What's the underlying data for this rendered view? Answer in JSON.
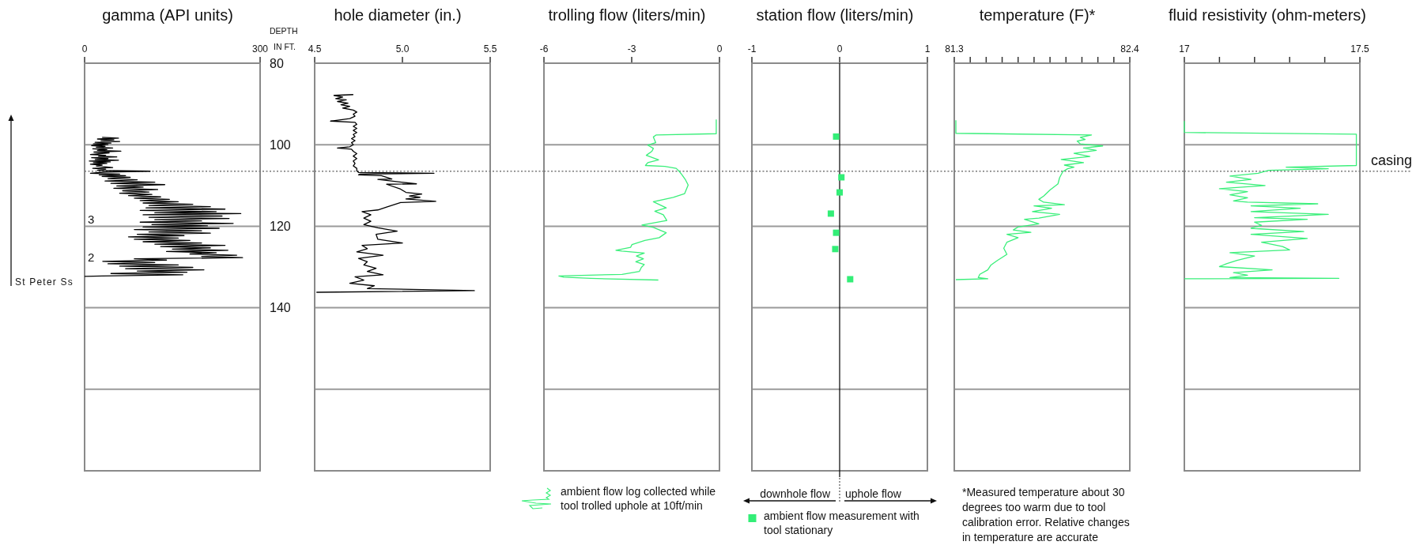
{
  "chart_data": [
    {
      "type": "line",
      "title": "gamma (API units)",
      "ylabel": "DEPTH IN FT.",
      "xlim": [
        0,
        300
      ],
      "xticks": [
        0,
        300
      ],
      "ylim": [
        180,
        80
      ],
      "yticks": [
        80,
        100,
        120,
        140,
        {
          "value": 160,
          "label": null
        }
      ],
      "grid": "y",
      "ref_lines": [
        {
          "axis": "y",
          "value": 106.5,
          "line_style": "dotted",
          "color": "#777777"
        }
      ],
      "annotations": [
        "3",
        "2",
        "St Peter Ss"
      ],
      "series": [
        {
          "color": "#000000",
          "x": [
            30,
            58,
            22,
            50,
            28,
            60,
            18,
            45,
            15,
            40,
            12,
            35,
            20,
            48,
            14,
            38,
            22,
            62,
            16,
            42,
            10,
            36,
            24,
            55,
            12,
            40,
            18,
            58,
            8,
            44,
            15,
            38,
            10,
            30,
            20,
            48,
            14,
            36,
            22,
            112,
            35,
            10,
            60,
            25,
            70,
            30,
            78,
            40,
            90,
            35,
            120,
            45,
            137,
            55,
            100,
            50,
            125,
            65,
            110,
            60,
            115,
            75,
            130,
            85,
            145,
            95,
            160,
            100,
            185,
            110,
            215,
            105,
            240,
            95,
            225,
            120,
            267,
            100,
            235,
            110,
            247,
            120,
            200,
            95,
            254,
            115,
            210,
            100,
            230,
            85,
            200,
            110,
            215,
            90,
            170,
            75,
            160,
            85,
            180,
            100,
            200,
            120,
            240,
            130,
            215,
            150,
            245,
            140,
            225,
            180,
            260,
            200,
            270,
            85,
            140,
            31,
            120,
            40,
            160,
            60,
            185,
            70,
            204,
            90,
            175,
            45,
            168,
            30,
            0
          ],
          "values": [
            98.2,
            98.4,
            98.6,
            98.8,
            99.0,
            99.2,
            99.4,
            99.6,
            99.8,
            100.0,
            100.2,
            100.4,
            100.6,
            100.8,
            101.0,
            101.2,
            101.4,
            101.6,
            101.8,
            102.0,
            102.4,
            102.6,
            102.8,
            103.0,
            103.2,
            103.4,
            103.6,
            103.8,
            104.0,
            104.2,
            104.4,
            104.6,
            104.8,
            105.0,
            105.2,
            105.6,
            105.8,
            106.0,
            106.3,
            106.5,
            106.7,
            107.0,
            107.2,
            107.4,
            107.6,
            107.8,
            108.0,
            108.3,
            108.6,
            108.9,
            109.2,
            109.5,
            109.8,
            110.1,
            110.4,
            110.7,
            111.0,
            111.3,
            111.6,
            111.9,
            112.2,
            112.5,
            112.8,
            113.1,
            113.4,
            113.7,
            114.0,
            114.3,
            114.6,
            114.9,
            115.2,
            115.5,
            115.8,
            116.1,
            116.4,
            116.7,
            116.9,
            117.2,
            117.5,
            117.8,
            118.1,
            118.4,
            118.7,
            119.0,
            119.3,
            119.6,
            119.9,
            120.2,
            120.5,
            120.8,
            121.1,
            121.4,
            121.7,
            122.0,
            122.3,
            122.6,
            122.9,
            123.2,
            123.5,
            123.8,
            124.1,
            124.4,
            124.7,
            125.0,
            125.3,
            125.6,
            125.9,
            126.2,
            126.5,
            126.8,
            127.1,
            127.4,
            127.7,
            128.0,
            128.3,
            128.6,
            128.9,
            129.2,
            129.5,
            129.8,
            130.1,
            130.4,
            130.7,
            131.0,
            131.3,
            131.6,
            131.9,
            132.2,
            132.3
          ]
        }
      ]
    },
    {
      "type": "line",
      "title": "hole diameter (in.)",
      "xlim": [
        4.5,
        5.5
      ],
      "xticks": [
        4.5,
        {
          "value": 5,
          "label": "5.0"
        },
        5.5
      ],
      "ylim": [
        180,
        80
      ],
      "yticks": [
        80,
        100,
        120,
        140,
        160
      ],
      "grid": "y",
      "tick_labels": "x",
      "ref_lines": [
        {
          "axis": "y",
          "value": 106.5,
          "line_style": "dotted",
          "color": "#777777"
        }
      ],
      "series": [
        {
          "color": "#000000",
          "x": [
            4.72,
            4.61,
            4.66,
            4.62,
            4.68,
            4.63,
            4.69,
            4.65,
            4.7,
            4.66,
            4.72,
            4.74,
            4.72,
            4.73,
            4.7,
            4.59,
            4.73,
            4.74,
            4.72,
            4.74,
            4.72,
            4.74,
            4.72,
            4.73,
            4.71,
            4.73,
            4.71,
            4.72,
            4.7,
            4.63,
            4.71,
            4.72,
            4.74,
            4.72,
            4.74,
            4.72,
            4.73,
            4.72,
            4.74,
            4.74,
            4.75,
            5.18,
            4.76,
            4.75,
            4.88,
            4.94,
            4.86,
            5.08,
            4.91,
            4.99,
            5.02,
            5.11,
            5.04,
            5.1,
            5.02,
            5.19,
            4.99,
            4.91,
            4.86,
            4.77,
            4.82,
            4.78,
            4.82,
            4.78,
            4.86,
            4.97,
            4.85,
            4.86,
            5.0,
            4.77,
            4.8,
            4.74,
            4.89,
            4.75,
            4.8,
            4.78,
            4.85,
            4.8,
            4.89,
            4.73,
            4.78,
            4.7,
            4.84,
            4.8,
            5.41,
            4.51
          ],
          "values": [
            87.7,
            87.9,
            88.3,
            88.7,
            89.0,
            89.4,
            89.8,
            90.2,
            90.6,
            91.0,
            91.5,
            92.0,
            92.5,
            93.0,
            93.6,
            94.2,
            94.5,
            95.0,
            95.5,
            96.0,
            96.5,
            97.0,
            97.5,
            98.0,
            98.5,
            99.0,
            99.5,
            100.0,
            100.5,
            100.8,
            101.1,
            101.6,
            102.2,
            102.8,
            103.4,
            104.0,
            104.6,
            105.2,
            105.8,
            106.4,
            106.8,
            107.0,
            107.2,
            107.4,
            107.6,
            108.4,
            108.5,
            109.6,
            109.7,
            110.9,
            111.7,
            112.1,
            112.6,
            112.9,
            113.3,
            113.9,
            114.2,
            115.3,
            116.0,
            116.4,
            117.2,
            118.0,
            118.8,
            119.6,
            120.4,
            121.2,
            122.0,
            123.2,
            124.1,
            124.7,
            125.5,
            126.3,
            127.1,
            127.9,
            128.7,
            129.5,
            130.3,
            131.1,
            131.9,
            132.4,
            133.2,
            134.0,
            134.6,
            135.3,
            135.8,
            136.2
          ]
        }
      ]
    },
    {
      "type": "line",
      "title": "trolling flow (liters/min)",
      "xlim": [
        -6,
        0
      ],
      "xticks": [
        -6,
        -3,
        0
      ],
      "ylim": [
        180,
        80
      ],
      "yticks": [
        80,
        100,
        120,
        140,
        160
      ],
      "grid": "y",
      "tick_labels": "x",
      "legend": "bottom",
      "ref_lines": [
        {
          "axis": "y",
          "value": 106.5,
          "line_style": "dotted",
          "color": "#777777"
        }
      ],
      "series": [
        {
          "name": "ambient flow log collected while tool trolled uphole at 10ft/min",
          "color": "#3aef7a",
          "x": [
            -0.11,
            -0.11,
            -2.16,
            -2.26,
            -2.18,
            -2.45,
            -2.26,
            -2.31,
            -2.5,
            -2.08,
            -2.45,
            -2.53,
            -1.87,
            -1.48,
            -1.38,
            -1.3,
            -1.17,
            -1.07,
            -1.19,
            -1.58,
            -2.26,
            -1.82,
            -2.21,
            -1.92,
            -1.8,
            -2.65,
            -2.26,
            -1.82,
            -2.06,
            -2.55,
            -2.99,
            -3.04,
            -3.54,
            -3.33,
            -2.57,
            -2.84,
            -2.6,
            -2.86,
            -2.57,
            -2.67,
            -2.74,
            -3.33,
            -5.49,
            -5.32,
            -4.4,
            -2.09
          ],
          "values": [
            93.8,
            97.3,
            97.6,
            98.1,
            99.5,
            100.1,
            100.9,
            101.6,
            102.6,
            103.7,
            104.4,
            105.1,
            105.3,
            105.8,
            106.5,
            107.2,
            108.5,
            109.9,
            112.0,
            112.9,
            114.0,
            115.5,
            116.3,
            117.2,
            118.6,
            119.7,
            120.3,
            121.6,
            122.8,
            123.5,
            124.5,
            125.2,
            125.9,
            126.1,
            126.6,
            127.3,
            128.0,
            128.7,
            129.4,
            130.1,
            131.1,
            131.8,
            132.2,
            132.5,
            132.8,
            133.2
          ]
        }
      ]
    },
    {
      "type": "scatter",
      "title": "station flow (liters/min)",
      "xlim": [
        -1,
        1
      ],
      "xticks": [
        -1,
        0,
        1
      ],
      "ylim": [
        180,
        80
      ],
      "yticks": [
        80,
        100,
        120,
        140,
        160
      ],
      "grid": "y",
      "tick_labels": "x",
      "legend": "bottom",
      "marker": "square",
      "ref_lines": [
        {
          "axis": "x",
          "value": 0,
          "color": "#000000"
        },
        {
          "axis": "y",
          "value": 106.5,
          "line_style": "dotted",
          "color": "#777777"
        }
      ],
      "annotations": [
        "downhole flow",
        "uphole flow"
      ],
      "series": [
        {
          "name": "ambient flow measurement with tool stationary",
          "color": "#33ee77",
          "x": [
            -0.04,
            0.02,
            0.0,
            -0.1,
            -0.04,
            -0.05,
            0.12
          ],
          "values": [
            98.0,
            108.0,
            111.7,
            116.9,
            121.6,
            125.6,
            133.0
          ]
        }
      ]
    },
    {
      "type": "line",
      "title": "temperature (F)*",
      "xlim": [
        81.3,
        82.4
      ],
      "xticks": [
        81.3,
        {
          "value": 81.4,
          "label": null
        },
        {
          "value": 81.5,
          "label": null
        },
        {
          "value": 81.6,
          "label": null
        },
        {
          "value": 81.7,
          "label": null
        },
        {
          "value": 81.8,
          "label": null
        },
        {
          "value": 81.9,
          "label": null
        },
        {
          "value": 82.0,
          "label": null
        },
        {
          "value": 82.1,
          "label": null
        },
        {
          "value": 82.2,
          "label": null
        },
        {
          "value": 82.3,
          "label": null
        },
        82.4
      ],
      "ylim": [
        180,
        80
      ],
      "yticks": [
        80,
        100,
        120,
        140,
        160
      ],
      "grid": "y",
      "tick_labels": "x",
      "ref_lines": [
        {
          "axis": "y",
          "value": 106.5,
          "line_style": "dotted",
          "color": "#777777"
        }
      ],
      "annotations": [
        "*Measured temperature about 30 degrees too warm due to tool calibration error. Relative changes in temperature are accurate"
      ],
      "series": [
        {
          "color": "#3aef7a",
          "x": [
            81.31,
            81.31,
            82.16,
            82.09,
            82.12,
            82.07,
            82.09,
            82.23,
            82.11,
            82.19,
            82.05,
            82.15,
            81.97,
            82.11,
            81.99,
            82.05,
            82.01,
            81.98,
            81.96,
            81.95,
            81.9,
            81.86,
            81.83,
            81.86,
            81.99,
            81.8,
            81.91,
            81.79,
            81.96,
            81.83,
            81.74,
            81.83,
            81.7,
            81.67,
            81.78,
            81.63,
            81.7,
            81.63,
            81.61,
            81.63,
            81.57,
            81.53,
            81.51,
            81.46,
            81.45,
            81.51,
            81.31
          ],
          "values": [
            94.0,
            97.2,
            97.6,
            98.2,
            98.7,
            99.1,
            99.8,
            100.3,
            100.8,
            101.4,
            102.1,
            102.9,
            103.6,
            104.4,
            105.0,
            105.5,
            105.9,
            106.6,
            108.1,
            109.6,
            111.1,
            112.6,
            113.4,
            114.1,
            114.7,
            115.0,
            115.6,
            116.4,
            117.1,
            118.0,
            118.3,
            119.4,
            120.2,
            120.9,
            121.5,
            122.0,
            122.8,
            123.9,
            125.4,
            126.9,
            128.4,
            129.5,
            130.7,
            131.8,
            132.6,
            132.9,
            133.1
          ]
        }
      ]
    },
    {
      "type": "line",
      "title": "fluid resistivity (ohm-meters)",
      "xlim": [
        17,
        17.5
      ],
      "xticks": [
        17,
        {
          "value": 17.1,
          "label": null
        },
        {
          "value": 17.2,
          "label": null
        },
        {
          "value": 17.3,
          "label": null
        },
        {
          "value": 17.4,
          "label": null
        },
        17.5
      ],
      "ylim": [
        180,
        80
      ],
      "yticks": [
        80,
        100,
        120,
        140,
        160
      ],
      "grid": "y",
      "tick_labels": "x",
      "ref_lines": [
        {
          "axis": "y",
          "value": 106.5,
          "line_style": "dotted",
          "color": "#777777",
          "label": "casing"
        }
      ],
      "series": [
        {
          "color": "#3aef7a",
          "x": [
            17.0,
            17.0,
            17.49,
            17.49,
            17.29,
            17.41,
            17.24,
            17.21,
            17.13,
            17.19,
            17.12,
            17.23,
            17.1,
            17.18,
            17.13,
            17.18,
            17.14,
            17.18,
            17.38,
            17.19,
            17.33,
            17.19,
            17.41,
            17.2,
            17.35,
            17.2,
            17.22,
            17.19,
            17.34,
            17.19,
            17.35,
            17.22,
            17.28,
            17.3,
            17.13,
            17.2,
            17.15,
            17.12,
            17.1,
            17.25,
            17.14,
            17.18,
            17.13,
            17.44,
            17.0
          ],
          "values": [
            94.2,
            97.0,
            97.4,
            105.1,
            105.5,
            105.9,
            106.3,
            107.0,
            107.7,
            108.5,
            109.2,
            110.0,
            110.8,
            111.5,
            112.3,
            113.0,
            113.8,
            114.1,
            114.5,
            115.0,
            115.6,
            116.4,
            117.1,
            117.9,
            118.3,
            119.0,
            119.8,
            120.5,
            121.3,
            122.0,
            123.0,
            123.9,
            125.0,
            125.8,
            126.5,
            127.3,
            128.4,
            129.2,
            129.9,
            130.7,
            131.4,
            132.0,
            132.6,
            132.8,
            132.9
          ]
        }
      ]
    }
  ]
}
